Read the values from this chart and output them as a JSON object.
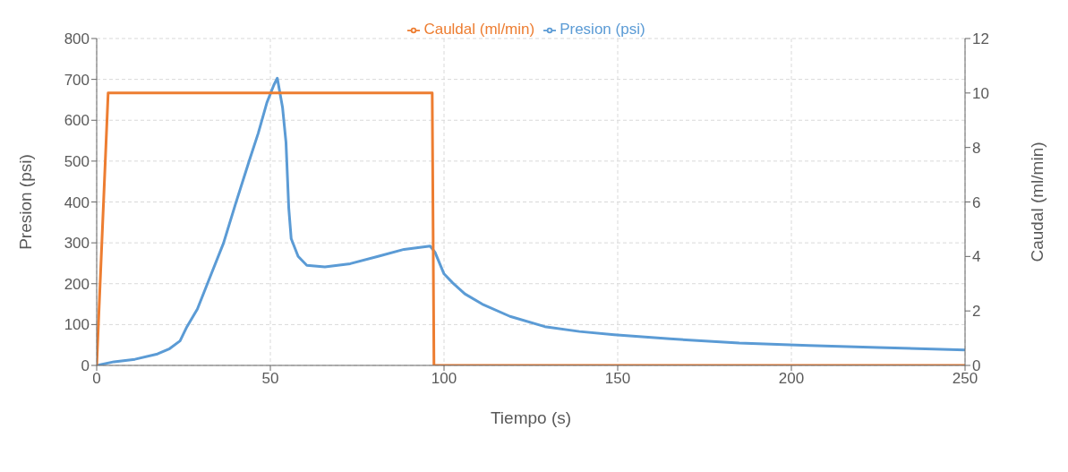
{
  "chart_data": {
    "type": "line",
    "xlabel": "Tiempo (s)",
    "ylabel": "Presion (psi)",
    "y2label": "Caudal (ml/min)",
    "xlim": [
      0,
      250
    ],
    "xticks": [
      0,
      50,
      100,
      150,
      200,
      250
    ],
    "ylim": [
      0,
      800
    ],
    "yticks": [
      0,
      100,
      200,
      300,
      400,
      500,
      600,
      700,
      800
    ],
    "y2lim": [
      0,
      12
    ],
    "y2ticks": [
      0,
      2,
      4,
      6,
      8,
      10,
      12
    ],
    "grid": true,
    "legend": "top",
    "marker": "none",
    "series": [
      {
        "name": "Presion (psi)",
        "color": "#5b9bd5",
        "x": [
          0,
          5,
          11,
          17.5,
          21,
          24,
          26,
          29,
          33,
          36.5,
          40,
          44,
          46.5,
          49,
          51,
          52,
          53.5,
          54.5,
          55.3,
          56,
          58,
          60.5,
          65.7,
          73,
          81,
          88.5,
          96,
          97.4,
          100,
          102.5,
          106,
          111,
          119,
          129,
          139,
          149,
          165,
          185,
          205,
          225,
          250
        ],
        "values": [
          0,
          9,
          15,
          28,
          41,
          60,
          95,
          138,
          224,
          299,
          396,
          503,
          568,
          643,
          686,
          703,
          632,
          546,
          385,
          310,
          267,
          245,
          241,
          249,
          267,
          284,
          292,
          277,
          224,
          202,
          175,
          150,
          120,
          95,
          83,
          75,
          65,
          55,
          49,
          44,
          38
        ]
      },
      {
        "name": "Cauldal (ml/min)",
        "color": "#ed7d31",
        "axis": "y2",
        "x": [
          0,
          3.3,
          96.6,
          97.1,
          250
        ],
        "values": [
          0,
          10,
          10,
          0,
          0
        ]
      }
    ]
  }
}
